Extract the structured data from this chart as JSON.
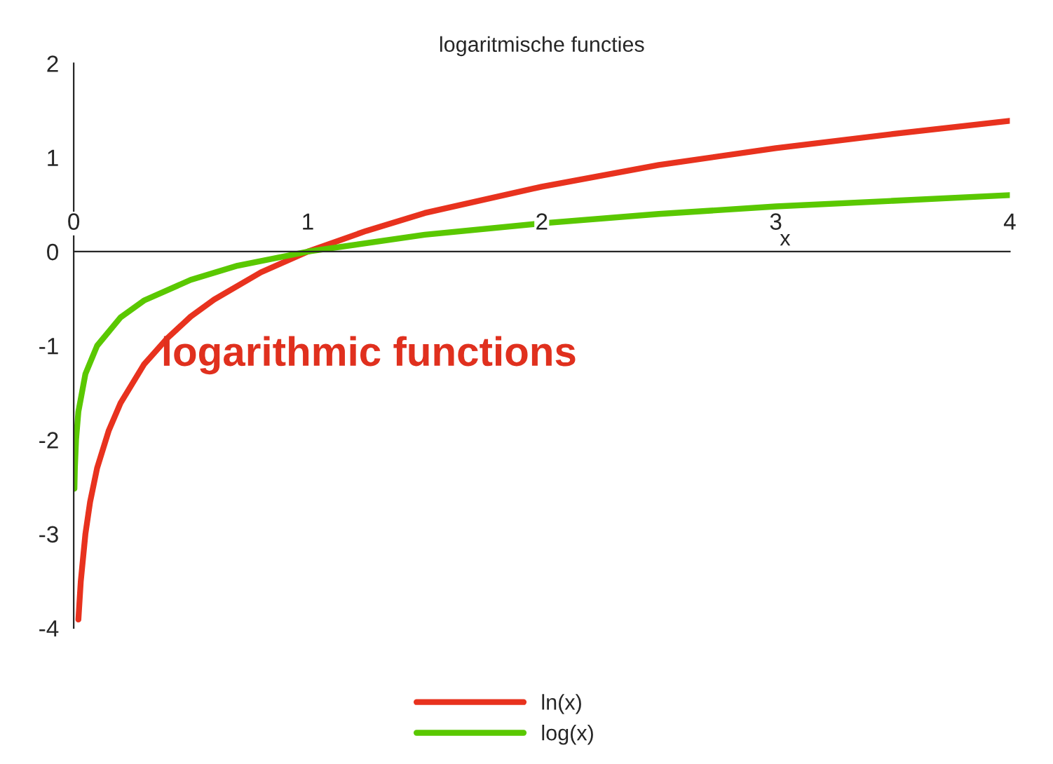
{
  "chart_data": {
    "type": "line",
    "title": "logaritmische functies",
    "xlabel": "x",
    "xlim": [
      0,
      4
    ],
    "xticks": [
      0,
      1,
      2,
      3,
      4
    ],
    "ylim": [
      -4,
      2
    ],
    "yticks": [
      -4,
      -3,
      -2,
      -1,
      0,
      1,
      2
    ],
    "grid": false,
    "legend": "bottom",
    "line_style": "solid",
    "marker": "none",
    "annotations": [
      "logarithmic functions"
    ],
    "series": [
      {
        "name": "ln(x)",
        "color": "#e8321e",
        "x": [
          0.02,
          0.03,
          0.05,
          0.07,
          0.1,
          0.15,
          0.2,
          0.3,
          0.4,
          0.5,
          0.6,
          0.8,
          1,
          1.25,
          1.5,
          2,
          2.5,
          3,
          3.5,
          4
        ],
        "values": [
          -3.91,
          -3.51,
          -3.0,
          -2.66,
          -2.3,
          -1.9,
          -1.61,
          -1.2,
          -0.92,
          -0.69,
          -0.51,
          -0.22,
          0,
          0.22,
          0.41,
          0.69,
          0.92,
          1.1,
          1.25,
          1.39
        ]
      },
      {
        "name": "log(x)",
        "color": "#5ac800",
        "x": [
          0.003,
          0.005,
          0.01,
          0.02,
          0.05,
          0.1,
          0.2,
          0.3,
          0.5,
          0.7,
          1,
          1.5,
          2,
          2.5,
          3,
          3.5,
          4
        ],
        "values": [
          -2.52,
          -2.3,
          -2,
          -1.7,
          -1.3,
          -1,
          -0.7,
          -0.52,
          -0.3,
          -0.15,
          0,
          0.18,
          0.3,
          0.4,
          0.48,
          0.54,
          0.6
        ]
      }
    ]
  }
}
